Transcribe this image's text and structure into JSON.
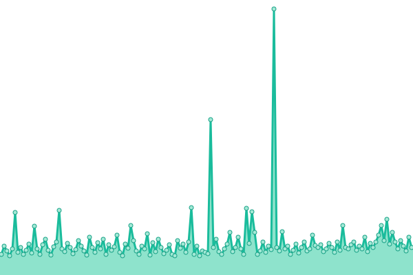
{
  "chart_data": {
    "type": "area",
    "color": "#1abc9c",
    "fill": "#8ee3cc",
    "marker_fill": "#a3e9d6",
    "marker_stroke": "#16a085",
    "ylim": [
      0,
      400
    ],
    "values": [
      30,
      42,
      35,
      28,
      38,
      91,
      33,
      40,
      30,
      36,
      45,
      32,
      71,
      38,
      30,
      44,
      52,
      36,
      29,
      41,
      48,
      94,
      38,
      34,
      46,
      40,
      31,
      37,
      50,
      42,
      35,
      29,
      55,
      40,
      33,
      47,
      38,
      52,
      30,
      44,
      36,
      41,
      58,
      33,
      28,
      45,
      39,
      72,
      50,
      35,
      30,
      42,
      38,
      60,
      29,
      47,
      34,
      52,
      40,
      31,
      36,
      44,
      30,
      28,
      50,
      39,
      45,
      33,
      48,
      98,
      30,
      42,
      28,
      35,
      33,
      31,
      226,
      40,
      52,
      34,
      30,
      38,
      45,
      62,
      34,
      40,
      55,
      38,
      30,
      97,
      46,
      92,
      62,
      30,
      35,
      48,
      33,
      42,
      37,
      387,
      40,
      35,
      63,
      38,
      42,
      30,
      36,
      45,
      32,
      40,
      48,
      35,
      38,
      58,
      43,
      40,
      44,
      34,
      38,
      46,
      40,
      33,
      48,
      36,
      72,
      40,
      38,
      44,
      48,
      36,
      42,
      38,
      55,
      34,
      46,
      40,
      48,
      58,
      72,
      50,
      81,
      45,
      62,
      48,
      38,
      50,
      42,
      35,
      55,
      40
    ]
  }
}
